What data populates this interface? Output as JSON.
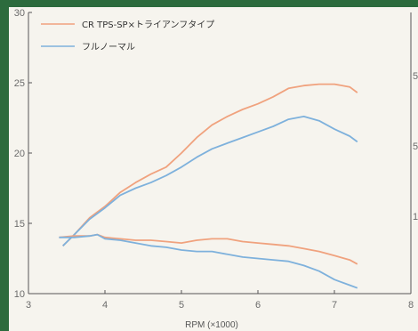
{
  "chart_data": {
    "type": "line",
    "xlabel": "RPM (×1000)",
    "ylabel": "",
    "xlim": [
      3,
      8
    ],
    "ylim": [
      10,
      30
    ],
    "x_ticks": [
      "3",
      "4",
      "5",
      "6",
      "7",
      "8"
    ],
    "y_ticks": [
      "30",
      "25",
      "20",
      "15",
      "10"
    ],
    "right_ticks": [
      "5",
      "5",
      "1"
    ],
    "grid": false,
    "legend_position": "top-left",
    "series": [
      {
        "name": "CR TPS-SP×トライアンフタイプ",
        "color": "#f0a27e",
        "group": "power",
        "points": [
          [
            3.45,
            13.4
          ],
          [
            3.6,
            14.2
          ],
          [
            3.8,
            15.4
          ],
          [
            4.0,
            16.2
          ],
          [
            4.2,
            17.2
          ],
          [
            4.4,
            17.9
          ],
          [
            4.6,
            18.5
          ],
          [
            4.8,
            19.0
          ],
          [
            5.0,
            20.0
          ],
          [
            5.2,
            21.1
          ],
          [
            5.4,
            22.0
          ],
          [
            5.6,
            22.6
          ],
          [
            5.8,
            23.1
          ],
          [
            6.0,
            23.5
          ],
          [
            6.2,
            24.0
          ],
          [
            6.4,
            24.6
          ],
          [
            6.6,
            24.8
          ],
          [
            6.8,
            24.9
          ],
          [
            7.0,
            24.9
          ],
          [
            7.2,
            24.7
          ],
          [
            7.3,
            24.3
          ]
        ]
      },
      {
        "name": "フルノーマル",
        "color": "#7eb1dc",
        "group": "power",
        "points": [
          [
            3.45,
            13.4
          ],
          [
            3.6,
            14.2
          ],
          [
            3.8,
            15.3
          ],
          [
            4.0,
            16.1
          ],
          [
            4.2,
            17.0
          ],
          [
            4.4,
            17.5
          ],
          [
            4.6,
            17.9
          ],
          [
            4.8,
            18.4
          ],
          [
            5.0,
            19.0
          ],
          [
            5.2,
            19.7
          ],
          [
            5.4,
            20.3
          ],
          [
            5.6,
            20.7
          ],
          [
            5.8,
            21.1
          ],
          [
            6.0,
            21.5
          ],
          [
            6.2,
            21.9
          ],
          [
            6.4,
            22.4
          ],
          [
            6.6,
            22.6
          ],
          [
            6.8,
            22.3
          ],
          [
            7.0,
            21.7
          ],
          [
            7.2,
            21.2
          ],
          [
            7.3,
            20.8
          ]
        ]
      },
      {
        "name": "CR TPS-SP×トライアンフタイプ",
        "color": "#f0a27e",
        "group": "torque",
        "points": [
          [
            3.4,
            14.0
          ],
          [
            3.6,
            14.1
          ],
          [
            3.8,
            14.1
          ],
          [
            3.9,
            14.2
          ],
          [
            4.0,
            14.0
          ],
          [
            4.2,
            13.9
          ],
          [
            4.4,
            13.8
          ],
          [
            4.6,
            13.8
          ],
          [
            4.8,
            13.7
          ],
          [
            5.0,
            13.6
          ],
          [
            5.2,
            13.8
          ],
          [
            5.4,
            13.9
          ],
          [
            5.6,
            13.9
          ],
          [
            5.8,
            13.7
          ],
          [
            6.0,
            13.6
          ],
          [
            6.2,
            13.5
          ],
          [
            6.4,
            13.4
          ],
          [
            6.6,
            13.2
          ],
          [
            6.8,
            13.0
          ],
          [
            7.0,
            12.7
          ],
          [
            7.2,
            12.4
          ],
          [
            7.3,
            12.1
          ]
        ]
      },
      {
        "name": "フルノーマル",
        "color": "#7eb1dc",
        "group": "torque",
        "points": [
          [
            3.4,
            14.0
          ],
          [
            3.6,
            14.0
          ],
          [
            3.8,
            14.1
          ],
          [
            3.9,
            14.2
          ],
          [
            4.0,
            13.9
          ],
          [
            4.2,
            13.8
          ],
          [
            4.4,
            13.6
          ],
          [
            4.6,
            13.4
          ],
          [
            4.8,
            13.3
          ],
          [
            5.0,
            13.1
          ],
          [
            5.2,
            13.0
          ],
          [
            5.4,
            13.0
          ],
          [
            5.6,
            12.8
          ],
          [
            5.8,
            12.6
          ],
          [
            6.0,
            12.5
          ],
          [
            6.2,
            12.4
          ],
          [
            6.4,
            12.3
          ],
          [
            6.6,
            12.0
          ],
          [
            6.8,
            11.6
          ],
          [
            7.0,
            11.0
          ],
          [
            7.2,
            10.6
          ],
          [
            7.3,
            10.4
          ]
        ]
      }
    ]
  },
  "legend": [
    {
      "label": "CR TPS-SP×トライアンフタイプ",
      "color": "#f0a27e"
    },
    {
      "label": "フルノーマル",
      "color": "#7eb1dc"
    }
  ],
  "axis_label_text": "RPM (×1000)"
}
